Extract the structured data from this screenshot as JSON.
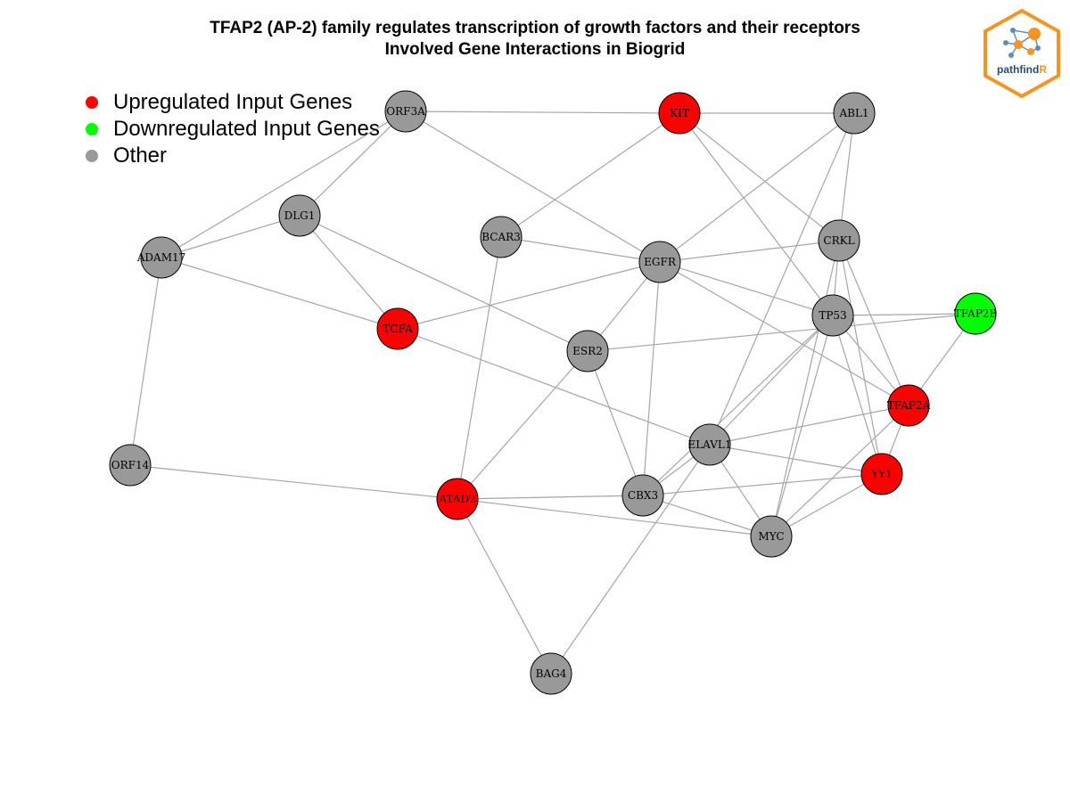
{
  "title": {
    "line1": "TFAP2 (AP-2) family regulates transcription of growth factors and their receptors",
    "line2": "Involved Gene Interactions in Biogrid"
  },
  "legend": [
    {
      "label": "Upregulated Input Genes",
      "color": "#ff0000"
    },
    {
      "label": "Downregulated Input Genes",
      "color": "#00ff00"
    },
    {
      "label": "Other",
      "color": "#999999"
    }
  ],
  "colors": {
    "up": "#ff0000",
    "down": "#00ff00",
    "other": "#999999",
    "edge": "#a6a6a6"
  },
  "logo": {
    "text_main": "pathfind",
    "text_accent": "R",
    "icon": "network-hexagon-icon"
  },
  "network": {
    "nodes": [
      {
        "id": "ORF3A",
        "type": "other"
      },
      {
        "id": "KIT",
        "type": "up"
      },
      {
        "id": "ABL1",
        "type": "other"
      },
      {
        "id": "DLG1",
        "type": "other"
      },
      {
        "id": "BCAR3",
        "type": "other"
      },
      {
        "id": "EGFR",
        "type": "other"
      },
      {
        "id": "CRKL",
        "type": "other"
      },
      {
        "id": "ADAM17",
        "type": "other"
      },
      {
        "id": "TGFA",
        "type": "up"
      },
      {
        "id": "TP53",
        "type": "other"
      },
      {
        "id": "TFAP2B",
        "type": "down"
      },
      {
        "id": "ESR2",
        "type": "other"
      },
      {
        "id": "TFAP2A",
        "type": "up"
      },
      {
        "id": "ELAVL1",
        "type": "other"
      },
      {
        "id": "YY1",
        "type": "up"
      },
      {
        "id": "ORF14",
        "type": "other"
      },
      {
        "id": "ATAD2",
        "type": "up"
      },
      {
        "id": "CBX3",
        "type": "other"
      },
      {
        "id": "MYC",
        "type": "other"
      },
      {
        "id": "BAG4",
        "type": "other"
      }
    ],
    "edges": [
      [
        "ORF3A",
        "KIT"
      ],
      [
        "ORF3A",
        "DLG1"
      ],
      [
        "ORF3A",
        "ADAM17"
      ],
      [
        "ORF3A",
        "EGFR"
      ],
      [
        "KIT",
        "ABL1"
      ],
      [
        "KIT",
        "BCAR3"
      ],
      [
        "KIT",
        "CRKL"
      ],
      [
        "KIT",
        "TP53"
      ],
      [
        "ABL1",
        "CRKL"
      ],
      [
        "ABL1",
        "EGFR"
      ],
      [
        "ABL1",
        "ELAVL1"
      ],
      [
        "DLG1",
        "ADAM17"
      ],
      [
        "DLG1",
        "TGFA"
      ],
      [
        "DLG1",
        "ESR2"
      ],
      [
        "BCAR3",
        "EGFR"
      ],
      [
        "BCAR3",
        "ATAD2"
      ],
      [
        "EGFR",
        "CRKL"
      ],
      [
        "EGFR",
        "TP53"
      ],
      [
        "EGFR",
        "TGFA"
      ],
      [
        "EGFR",
        "ESR2"
      ],
      [
        "EGFR",
        "TFAP2A"
      ],
      [
        "EGFR",
        "CBX3"
      ],
      [
        "CRKL",
        "TP53"
      ],
      [
        "CRKL",
        "TFAP2A"
      ],
      [
        "CRKL",
        "YY1"
      ],
      [
        "CRKL",
        "MYC"
      ],
      [
        "ADAM17",
        "TGFA"
      ],
      [
        "ADAM17",
        "ORF14"
      ],
      [
        "TGFA",
        "ELAVL1"
      ],
      [
        "TP53",
        "TFAP2B"
      ],
      [
        "TP53",
        "TFAP2A"
      ],
      [
        "TP53",
        "YY1"
      ],
      [
        "TP53",
        "ELAVL1"
      ],
      [
        "TP53",
        "MYC"
      ],
      [
        "TP53",
        "CBX3"
      ],
      [
        "TFAP2B",
        "ESR2"
      ],
      [
        "TFAP2B",
        "TFAP2A"
      ],
      [
        "ESR2",
        "ATAD2"
      ],
      [
        "ESR2",
        "CBX3"
      ],
      [
        "TFAP2A",
        "ELAVL1"
      ],
      [
        "TFAP2A",
        "YY1"
      ],
      [
        "TFAP2A",
        "MYC"
      ],
      [
        "ELAVL1",
        "YY1"
      ],
      [
        "ELAVL1",
        "CBX3"
      ],
      [
        "ELAVL1",
        "MYC"
      ],
      [
        "ELAVL1",
        "BAG4"
      ],
      [
        "YY1",
        "CBX3"
      ],
      [
        "YY1",
        "MYC"
      ],
      [
        "ORF14",
        "ATAD2"
      ],
      [
        "ATAD2",
        "CBX3"
      ],
      [
        "ATAD2",
        "MYC"
      ],
      [
        "ATAD2",
        "BAG4"
      ],
      [
        "CBX3",
        "MYC"
      ]
    ]
  }
}
